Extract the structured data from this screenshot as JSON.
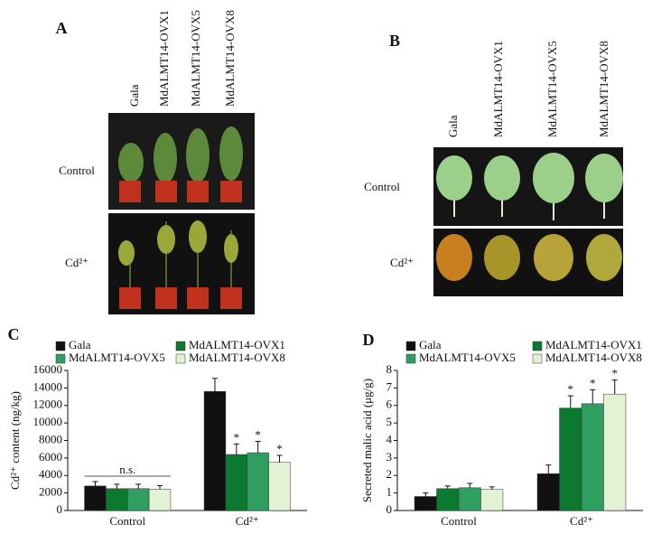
{
  "panel_a": {
    "label": "A",
    "columns": [
      "Gala",
      "MdALMT14-OVX1",
      "MdALMT14-OVX5",
      "MdALMT14-OVX8"
    ],
    "rows": [
      "Control",
      "Cd²⁺"
    ]
  },
  "panel_b": {
    "label": "B",
    "columns": [
      "Gala",
      "MdALMT14-OVX1",
      "MdALMT14-OVX5",
      "MdALMT14-OVX8"
    ],
    "rows": [
      "Control",
      "Cd²⁺"
    ]
  },
  "chart_data": [
    {
      "type": "bar",
      "label": "C",
      "ylabel": "Cd²⁺ content (ng/kg)",
      "categories": [
        "Control",
        "Cd²⁺"
      ],
      "series": [
        {
          "name": "Gala",
          "color": "#111111",
          "values": [
            2800,
            13600
          ],
          "errors": [
            500,
            1500
          ]
        },
        {
          "name": "MdALMT14-OVX1",
          "color": "#0b7a30",
          "values": [
            2500,
            6400
          ],
          "errors": [
            500,
            1200
          ]
        },
        {
          "name": "MdALMT14-OVX5",
          "color": "#2f9e60",
          "values": [
            2500,
            6600
          ],
          "errors": [
            500,
            1300
          ]
        },
        {
          "name": "MdALMT14-OVX8",
          "color": "#e2f2d4",
          "values": [
            2450,
            5500
          ],
          "errors": [
            400,
            800
          ]
        }
      ],
      "ylim": [
        0,
        16000
      ],
      "yticks": [
        0,
        2000,
        4000,
        6000,
        8000,
        10000,
        12000,
        14000,
        16000
      ],
      "annotations": [
        {
          "text": "n.s.",
          "category": "Control",
          "color": "#555555"
        },
        {
          "text": "*",
          "category": "Cd²⁺",
          "series": "MdALMT14-OVX1",
          "color": "#111111"
        },
        {
          "text": "*",
          "category": "Cd²⁺",
          "series": "MdALMT14-OVX5",
          "color": "#111111"
        },
        {
          "text": "*",
          "category": "Cd²⁺",
          "series": "MdALMT14-OVX8",
          "color": "#111111"
        }
      ]
    },
    {
      "type": "bar",
      "label": "D",
      "ylabel": "Secreted malic acid (μg/g)",
      "categories": [
        "Control",
        "Cd²⁺"
      ],
      "series": [
        {
          "name": "Gala",
          "color": "#111111",
          "values": [
            0.8,
            2.1
          ],
          "errors": [
            0.2,
            0.5
          ]
        },
        {
          "name": "MdALMT14-OVX1",
          "color": "#0b7a30",
          "values": [
            1.25,
            5.85
          ],
          "errors": [
            0.15,
            0.7
          ]
        },
        {
          "name": "MdALMT14-OVX5",
          "color": "#2f9e60",
          "values": [
            1.3,
            6.1
          ],
          "errors": [
            0.25,
            0.8
          ]
        },
        {
          "name": "MdALMT14-OVX8",
          "color": "#e2f2d4",
          "values": [
            1.2,
            6.65
          ],
          "errors": [
            0.15,
            0.8
          ]
        }
      ],
      "ylim": [
        0,
        8
      ],
      "yticks": [
        0,
        1,
        2,
        3,
        4,
        5,
        6,
        7,
        8
      ],
      "annotations": [
        {
          "text": "*",
          "category": "Cd²⁺",
          "series": "MdALMT14-OVX1",
          "color": "#3a4a9a"
        },
        {
          "text": "*",
          "category": "Cd²⁺",
          "series": "MdALMT14-OVX5",
          "color": "#3a4a9a"
        },
        {
          "text": "*",
          "category": "Cd²⁺",
          "series": "MdALMT14-OVX8",
          "color": "#3a4a9a"
        }
      ]
    }
  ]
}
